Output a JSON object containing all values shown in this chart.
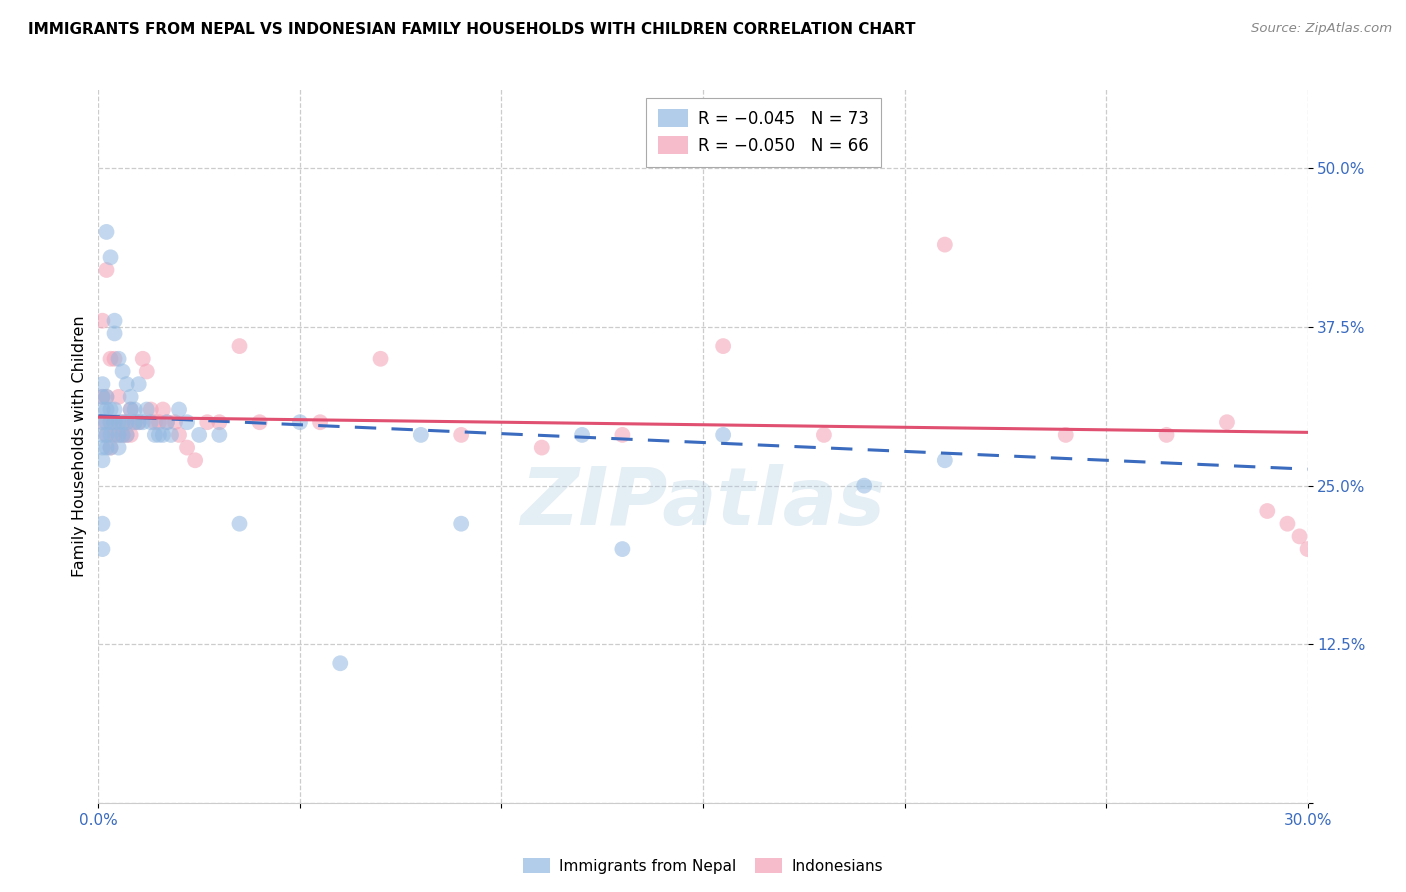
{
  "title": "IMMIGRANTS FROM NEPAL VS INDONESIAN FAMILY HOUSEHOLDS WITH CHILDREN CORRELATION CHART",
  "source": "Source: ZipAtlas.com",
  "ylabel": "Family Households with Children",
  "x_min": 0.0,
  "x_max": 0.3,
  "y_min": 0.0,
  "y_max": 0.5625,
  "nepal_color": "#92b8e0",
  "indonesian_color": "#f4a0b5",
  "nepal_line_color": "#3a6bbf",
  "indonesian_line_color": "#e05070",
  "nepal_scatter_x": [
    0.001,
    0.001,
    0.001,
    0.001,
    0.001,
    0.001,
    0.001,
    0.001,
    0.001,
    0.002,
    0.002,
    0.002,
    0.002,
    0.002,
    0.002,
    0.003,
    0.003,
    0.003,
    0.003,
    0.003,
    0.004,
    0.004,
    0.004,
    0.004,
    0.005,
    0.005,
    0.005,
    0.005,
    0.006,
    0.006,
    0.006,
    0.007,
    0.007,
    0.007,
    0.008,
    0.008,
    0.009,
    0.009,
    0.01,
    0.01,
    0.011,
    0.012,
    0.013,
    0.014,
    0.015,
    0.016,
    0.017,
    0.018,
    0.02,
    0.022,
    0.025,
    0.03,
    0.035,
    0.05,
    0.06,
    0.08,
    0.09,
    0.12,
    0.13,
    0.155,
    0.19,
    0.21
  ],
  "nepal_scatter_y": [
    0.3,
    0.29,
    0.28,
    0.27,
    0.31,
    0.32,
    0.33,
    0.22,
    0.2,
    0.45,
    0.3,
    0.29,
    0.28,
    0.31,
    0.32,
    0.43,
    0.3,
    0.31,
    0.29,
    0.28,
    0.38,
    0.37,
    0.3,
    0.31,
    0.35,
    0.3,
    0.29,
    0.28,
    0.34,
    0.3,
    0.29,
    0.33,
    0.3,
    0.29,
    0.32,
    0.31,
    0.31,
    0.3,
    0.33,
    0.3,
    0.3,
    0.31,
    0.3,
    0.29,
    0.29,
    0.29,
    0.3,
    0.29,
    0.31,
    0.3,
    0.29,
    0.29,
    0.22,
    0.3,
    0.11,
    0.29,
    0.22,
    0.29,
    0.2,
    0.29,
    0.25,
    0.27
  ],
  "indonesian_scatter_x": [
    0.001,
    0.001,
    0.001,
    0.002,
    0.002,
    0.002,
    0.003,
    0.003,
    0.003,
    0.004,
    0.004,
    0.004,
    0.005,
    0.005,
    0.006,
    0.006,
    0.007,
    0.007,
    0.008,
    0.008,
    0.009,
    0.01,
    0.011,
    0.012,
    0.013,
    0.014,
    0.015,
    0.016,
    0.017,
    0.019,
    0.02,
    0.022,
    0.024,
    0.027,
    0.03,
    0.035,
    0.04,
    0.055,
    0.07,
    0.09,
    0.11,
    0.13,
    0.155,
    0.18,
    0.21,
    0.24,
    0.265,
    0.28,
    0.29,
    0.295,
    0.298,
    0.3
  ],
  "indonesian_scatter_y": [
    0.38,
    0.32,
    0.3,
    0.42,
    0.32,
    0.29,
    0.35,
    0.3,
    0.28,
    0.35,
    0.3,
    0.29,
    0.32,
    0.29,
    0.3,
    0.29,
    0.3,
    0.29,
    0.31,
    0.29,
    0.3,
    0.3,
    0.35,
    0.34,
    0.31,
    0.3,
    0.3,
    0.31,
    0.3,
    0.3,
    0.29,
    0.28,
    0.27,
    0.3,
    0.3,
    0.36,
    0.3,
    0.3,
    0.35,
    0.29,
    0.28,
    0.29,
    0.36,
    0.29,
    0.44,
    0.29,
    0.29,
    0.3,
    0.23,
    0.22,
    0.21,
    0.2
  ],
  "nepal_line_x0": 0.0,
  "nepal_line_x1": 0.3,
  "nepal_line_y0": 0.305,
  "nepal_line_y1": 0.263,
  "indo_line_x0": 0.0,
  "indo_line_x1": 0.3,
  "indo_line_y0": 0.304,
  "indo_line_y1": 0.292,
  "watermark": "ZIPatlas",
  "background_color": "#ffffff",
  "grid_color": "#cccccc"
}
